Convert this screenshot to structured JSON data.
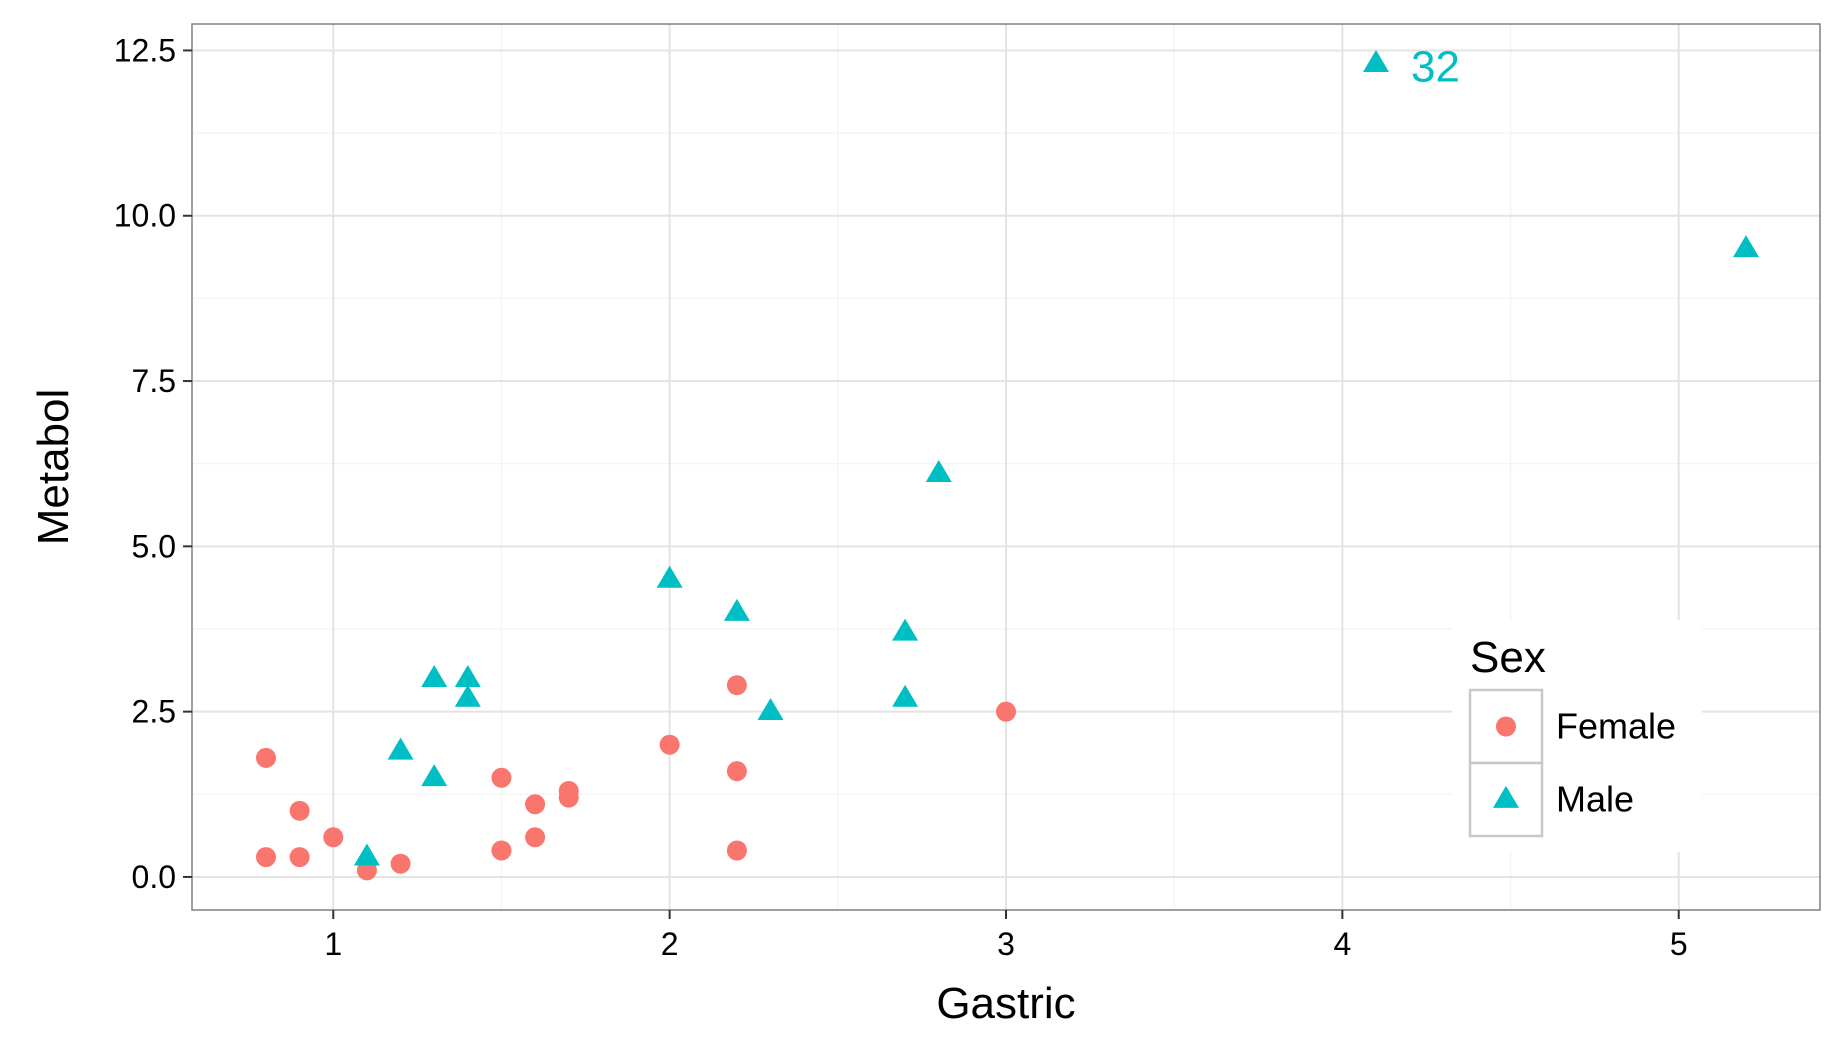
{
  "chart_data": {
    "type": "scatter",
    "title": "",
    "xlabel": "Gastric",
    "ylabel": "Metabol",
    "xlim": [
      0.58,
      5.42
    ],
    "ylim": [
      -0.5,
      12.9
    ],
    "x_ticks": [
      1,
      2,
      3,
      4,
      5
    ],
    "x_tick_labels": [
      "1",
      "2",
      "3",
      "4",
      "5"
    ],
    "y_ticks": [
      0,
      2.5,
      5,
      7.5,
      10,
      12.5
    ],
    "y_tick_labels": [
      "0.0",
      "2.5",
      "5.0",
      "7.5",
      "10.0",
      "12.5"
    ],
    "grid": true,
    "legend": {
      "title": "Sex",
      "placement": "inside-bottom-right"
    },
    "series": [
      {
        "name": "Female",
        "marker": "circle",
        "color": "#F8766D",
        "points": [
          {
            "x": 0.8,
            "y": 1.8
          },
          {
            "x": 0.8,
            "y": 0.3
          },
          {
            "x": 0.9,
            "y": 1.0
          },
          {
            "x": 0.9,
            "y": 0.3
          },
          {
            "x": 1.0,
            "y": 0.6
          },
          {
            "x": 1.1,
            "y": 0.1
          },
          {
            "x": 1.2,
            "y": 0.2
          },
          {
            "x": 1.5,
            "y": 1.5
          },
          {
            "x": 1.5,
            "y": 0.4
          },
          {
            "x": 1.6,
            "y": 1.1
          },
          {
            "x": 1.6,
            "y": 0.6
          },
          {
            "x": 1.7,
            "y": 1.3
          },
          {
            "x": 1.7,
            "y": 1.2
          },
          {
            "x": 2.0,
            "y": 2.0
          },
          {
            "x": 2.2,
            "y": 2.9
          },
          {
            "x": 2.2,
            "y": 1.6
          },
          {
            "x": 2.2,
            "y": 0.4
          },
          {
            "x": 3.0,
            "y": 2.5
          }
        ]
      },
      {
        "name": "Male",
        "marker": "triangle",
        "color": "#00BFC4",
        "points": [
          {
            "x": 1.1,
            "y": 0.3
          },
          {
            "x": 1.2,
            "y": 1.9
          },
          {
            "x": 1.3,
            "y": 1.5
          },
          {
            "x": 1.3,
            "y": 3.0
          },
          {
            "x": 1.4,
            "y": 3.0
          },
          {
            "x": 1.4,
            "y": 2.7
          },
          {
            "x": 2.0,
            "y": 4.5
          },
          {
            "x": 2.2,
            "y": 4.0
          },
          {
            "x": 2.3,
            "y": 2.5
          },
          {
            "x": 2.7,
            "y": 3.7
          },
          {
            "x": 2.7,
            "y": 2.7
          },
          {
            "x": 2.8,
            "y": 6.1
          },
          {
            "x": 4.1,
            "y": 12.3,
            "label": "32"
          },
          {
            "x": 5.2,
            "y": 9.5
          }
        ]
      }
    ]
  }
}
